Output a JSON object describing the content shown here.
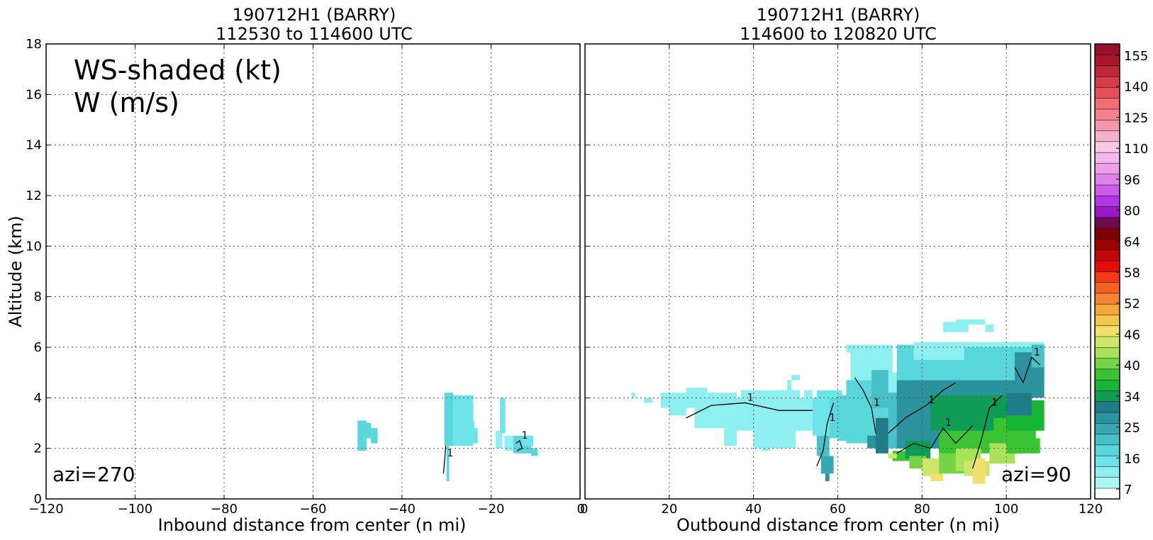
{
  "figure": {
    "ylabel": "Altitude (km)",
    "legend_text": [
      "WS-shaded (kt)",
      "W (m/s)"
    ]
  },
  "chart_data": [
    {
      "type": "heatmap",
      "title_line1": "190712H1 (BARRY)",
      "title_line2": "112530 to 114600 UTC",
      "xlabel": "Inbound distance from center (n mi)",
      "ylabel": "Altitude (km)",
      "xlim": [
        -120,
        0
      ],
      "ylim": [
        0,
        18
      ],
      "xticks": [
        -120,
        -100,
        -80,
        -60,
        -40,
        -20,
        0
      ],
      "xtick_labels": [
        "−120",
        "−100",
        "−80",
        "−60",
        "−40",
        "−20",
        "0"
      ],
      "yticks": [
        0,
        2,
        4,
        6,
        8,
        10,
        12,
        14,
        16,
        18
      ],
      "grid": true,
      "annotation": "azi=270",
      "cells": [
        [
          -50,
          1.9,
          2,
          1.2,
          22
        ],
        [
          -48.5,
          2.4,
          1.5,
          0.6,
          22
        ],
        [
          -47,
          2.2,
          1.5,
          0.6,
          22
        ],
        [
          -30.5,
          2.1,
          2,
          2.1,
          22
        ],
        [
          -28.5,
          2.1,
          4.5,
          2.0,
          19
        ],
        [
          -26,
          2.2,
          2.2,
          0.9,
          19
        ],
        [
          -24.5,
          2.2,
          1.5,
          0.6,
          19
        ],
        [
          -30,
          0.7,
          0.6,
          1.5,
          22
        ],
        [
          -19,
          2.0,
          1.5,
          0.7,
          16
        ],
        [
          -18,
          2.6,
          1.2,
          1.4,
          19
        ],
        [
          -17,
          1.9,
          2,
          0.6,
          16
        ],
        [
          -15,
          1.8,
          4,
          0.7,
          22
        ],
        [
          -13,
          2.1,
          2.5,
          0.4,
          19
        ],
        [
          -11,
          1.7,
          1.5,
          0.3,
          22
        ]
      ],
      "contours": [
        {
          "label": "1",
          "points": [
            [
              -30.7,
              1.0
            ],
            [
              -30.4,
              1.6
            ],
            [
              -30.2,
              2.1
            ]
          ]
        },
        {
          "label": "1",
          "points": [
            [
              -14.2,
              1.9
            ],
            [
              -13.0,
              2.0
            ],
            [
              -13.6,
              2.3
            ],
            [
              -14.4,
              2.2
            ]
          ]
        }
      ]
    },
    {
      "type": "heatmap",
      "title_line1": "190712H1 (BARRY)",
      "title_line2": "114600 to 120820 UTC",
      "xlabel": "Outbound distance from center (n mi)",
      "ylabel": "",
      "xlim": [
        0,
        120
      ],
      "ylim": [
        0,
        18
      ],
      "xticks": [
        0,
        20,
        40,
        60,
        80,
        100,
        120
      ],
      "xtick_labels": [
        "0",
        "20",
        "40",
        "60",
        "80",
        "100",
        "120"
      ],
      "grid": true,
      "annotation": "azi=90",
      "cells": [
        [
          11,
          4.0,
          1,
          0.2,
          16
        ],
        [
          14,
          3.8,
          2,
          0.2,
          16
        ],
        [
          18,
          3.6,
          18,
          0.6,
          16
        ],
        [
          20,
          3.3,
          4,
          0.4,
          16
        ],
        [
          24,
          4.0,
          5,
          0.4,
          16
        ],
        [
          26,
          2.8,
          8,
          0.8,
          16
        ],
        [
          33,
          2.1,
          3,
          0.7,
          13
        ],
        [
          34,
          2.7,
          20,
          1.3,
          16
        ],
        [
          37,
          4.0,
          14,
          0.3,
          16
        ],
        [
          40,
          2.0,
          10,
          0.8,
          16
        ],
        [
          42,
          1.9,
          2,
          0.4,
          16
        ],
        [
          48,
          4.3,
          1,
          0.4,
          16
        ],
        [
          49,
          4.7,
          2,
          0.2,
          16
        ],
        [
          52,
          4.0,
          2,
          0.3,
          16
        ],
        [
          54,
          2.5,
          4,
          1.5,
          19
        ],
        [
          55,
          1.7,
          3,
          0.8,
          25
        ],
        [
          56,
          1.0,
          3,
          0.7,
          30
        ],
        [
          57,
          0.7,
          1,
          0.3,
          34
        ],
        [
          55,
          4.0,
          6,
          0.3,
          19
        ],
        [
          58,
          2.4,
          4,
          1.6,
          22
        ],
        [
          60,
          2.3,
          3,
          1.8,
          22
        ],
        [
          62,
          2.2,
          14,
          2.5,
          22
        ],
        [
          63,
          4.7,
          10,
          1.4,
          16
        ],
        [
          62,
          5.8,
          7,
          0.3,
          16
        ],
        [
          68,
          3.6,
          4,
          1.5,
          25
        ],
        [
          67,
          2.0,
          2,
          0.5,
          34
        ],
        [
          69,
          1.8,
          3,
          1.4,
          37
        ],
        [
          72,
          4.2,
          6,
          0.8,
          16
        ],
        [
          72,
          2.0,
          6,
          2.2,
          25
        ],
        [
          73,
          1.5,
          4,
          0.4,
          46
        ],
        [
          72,
          1.6,
          2,
          0.2,
          58
        ],
        [
          74,
          2.0,
          30,
          2.7,
          34
        ],
        [
          74,
          4.7,
          35,
          1.4,
          22
        ],
        [
          78,
          5.5,
          12,
          0.7,
          16
        ],
        [
          80,
          6.0,
          29,
          0.2,
          16
        ],
        [
          85,
          6.6,
          6,
          0.4,
          16
        ],
        [
          88,
          6.9,
          7,
          0.2,
          16
        ],
        [
          95,
          6.6,
          2,
          0.3,
          16
        ],
        [
          76,
          1.6,
          6,
          0.7,
          40
        ],
        [
          77,
          1.2,
          4,
          0.5,
          52
        ],
        [
          80,
          0.9,
          4,
          0.7,
          58
        ],
        [
          82,
          0.7,
          3,
          0.3,
          64
        ],
        [
          84,
          1.0,
          8,
          1.0,
          52
        ],
        [
          84,
          1.8,
          20,
          0.9,
          46
        ],
        [
          82,
          2.7,
          24,
          1.4,
          40
        ],
        [
          88,
          1.1,
          6,
          0.9,
          55
        ],
        [
          90,
          0.9,
          6,
          0.6,
          58
        ],
        [
          92,
          0.6,
          3,
          1.0,
          64
        ],
        [
          96,
          1.4,
          6,
          0.8,
          55
        ],
        [
          97,
          2.2,
          10,
          1.0,
          49
        ],
        [
          100,
          2.7,
          9,
          1.2,
          43
        ],
        [
          100,
          1.8,
          8,
          0.6,
          46
        ],
        [
          102,
          4.0,
          7,
          1.8,
          34
        ],
        [
          100,
          3.3,
          6,
          0.9,
          37
        ],
        [
          106,
          5.2,
          3,
          0.9,
          25
        ]
      ],
      "contours": [
        {
          "label": "1",
          "points": [
            [
              24,
              3.2
            ],
            [
              30,
              3.7
            ],
            [
              38,
              3.8
            ],
            [
              46,
              3.5
            ],
            [
              54,
              3.5
            ]
          ]
        },
        {
          "label": "1",
          "points": [
            [
              55,
              1.3
            ],
            [
              56.5,
              1.9
            ],
            [
              57.5,
              3.0
            ],
            [
              59,
              3.8
            ]
          ]
        },
        {
          "label": "1",
          "points": [
            [
              64,
              4.8
            ],
            [
              66,
              4.3
            ],
            [
              68,
              3.6
            ],
            [
              69,
              2.6
            ]
          ]
        },
        {
          "label": "1",
          "points": [
            [
              72,
              2.6
            ],
            [
              76,
              3.2
            ],
            [
              81,
              3.7
            ],
            [
              85,
              4.3
            ],
            [
              88,
              4.6
            ]
          ]
        },
        {
          "label": "1",
          "points": [
            [
              74,
              1.8
            ],
            [
              78,
              2.2
            ],
            [
              82,
              2.0
            ],
            [
              85,
              2.8
            ],
            [
              88,
              2.2
            ],
            [
              92,
              2.9
            ]
          ]
        },
        {
          "label": "1",
          "points": [
            [
              92,
              1.2
            ],
            [
              94,
              2.3
            ],
            [
              96,
              3.6
            ],
            [
              99,
              4.1
            ]
          ]
        },
        {
          "label": "1",
          "points": [
            [
              102,
              5.2
            ],
            [
              104,
              4.6
            ],
            [
              106,
              5.6
            ],
            [
              108,
              5.3
            ]
          ]
        }
      ]
    }
  ],
  "colorbar": {
    "tick_labels": [
      "155",
      "140",
      "125",
      "110",
      "96",
      "80",
      "64",
      "58",
      "52",
      "46",
      "40",
      "34",
      "25",
      "16",
      "7"
    ],
    "colors": [
      "#ffffff",
      "#abf6f7",
      "#8eeff0",
      "#6de5e8",
      "#5ad7dd",
      "#47c0c8",
      "#36a9b3",
      "#2a939e",
      "#1e7d89",
      "#0f9d56",
      "#17b534",
      "#3ac432",
      "#75d446",
      "#a8e25a",
      "#cde66a",
      "#f1e069",
      "#f3c747",
      "#f6a73a",
      "#f58530",
      "#f3631f",
      "#f23a15",
      "#e40c0c",
      "#c30606",
      "#9e0202",
      "#7f0202",
      "#700a50",
      "#9a19c8",
      "#b434e8",
      "#cd5be9",
      "#dd82ea",
      "#ec9ee9",
      "#f2b7ec",
      "#f7c7e4",
      "#f5b0cc",
      "#f497ac",
      "#f4818f",
      "#f36d75",
      "#e6505b",
      "#d63b48",
      "#c02839",
      "#a8172e",
      "#96122a"
    ],
    "min": 7,
    "max": 159
  }
}
